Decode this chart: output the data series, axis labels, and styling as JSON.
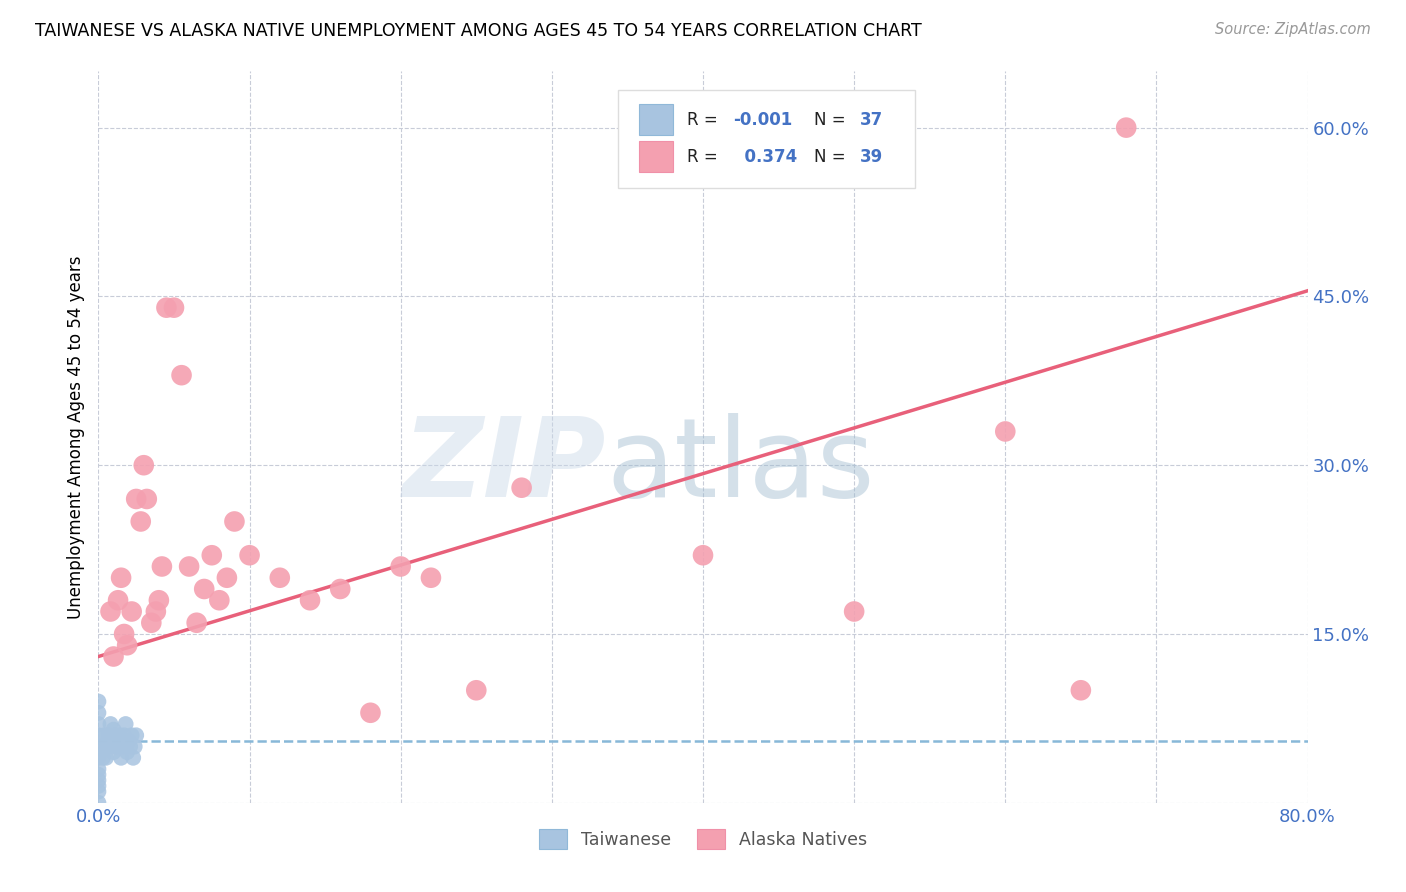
{
  "title": "TAIWANESE VS ALASKA NATIVE UNEMPLOYMENT AMONG AGES 45 TO 54 YEARS CORRELATION CHART",
  "source": "Source: ZipAtlas.com",
  "ylabel": "Unemployment Among Ages 45 to 54 years",
  "xlim": [
    0,
    0.8
  ],
  "ylim": [
    0,
    0.65
  ],
  "xticks": [
    0.0,
    0.1,
    0.2,
    0.3,
    0.4,
    0.5,
    0.6,
    0.7,
    0.8
  ],
  "xticklabels": [
    "0.0%",
    "",
    "",
    "",
    "",
    "",
    "",
    "",
    "80.0%"
  ],
  "right_yticks": [
    0.0,
    0.15,
    0.3,
    0.45,
    0.6
  ],
  "right_yticklabels": [
    "",
    "15.0%",
    "30.0%",
    "45.0%",
    "60.0%"
  ],
  "taiwanese_r": "-0.001",
  "taiwanese_n": "37",
  "alaska_r": "0.374",
  "alaska_n": "39",
  "taiwanese_color": "#a8c4e0",
  "alaska_color": "#f4a0b0",
  "taiwanese_line_color": "#88b8d8",
  "alaska_line_color": "#e8607a",
  "legend_taiwanese": "Taiwanese",
  "legend_alaska": "Alaska Natives",
  "tw_line_start_y": 0.055,
  "tw_line_end_y": 0.055,
  "ak_line_start_y": 0.13,
  "ak_line_end_y": 0.455,
  "taiwanese_x": [
    0.0,
    0.0,
    0.0,
    0.0,
    0.0,
    0.0,
    0.0,
    0.0,
    0.0,
    0.0,
    0.0,
    0.0,
    0.002,
    0.003,
    0.004,
    0.005,
    0.006,
    0.007,
    0.008,
    0.009,
    0.01,
    0.01,
    0.011,
    0.012,
    0.013,
    0.014,
    0.015,
    0.016,
    0.017,
    0.018,
    0.019,
    0.02,
    0.021,
    0.022,
    0.023,
    0.024,
    0.025
  ],
  "taiwanese_y": [
    0.02,
    0.03,
    0.04,
    0.05,
    0.06,
    0.07,
    0.08,
    0.09,
    0.01,
    0.0,
    0.015,
    0.025,
    0.05,
    0.04,
    0.06,
    0.04,
    0.05,
    0.06,
    0.07,
    0.055,
    0.045,
    0.065,
    0.05,
    0.06,
    0.05,
    0.06,
    0.04,
    0.05,
    0.06,
    0.07,
    0.045,
    0.055,
    0.05,
    0.06,
    0.04,
    0.05,
    0.06
  ],
  "alaska_x": [
    0.008,
    0.01,
    0.013,
    0.015,
    0.017,
    0.019,
    0.022,
    0.025,
    0.028,
    0.03,
    0.032,
    0.035,
    0.038,
    0.04,
    0.042,
    0.045,
    0.05,
    0.055,
    0.06,
    0.065,
    0.07,
    0.075,
    0.08,
    0.085,
    0.09,
    0.1,
    0.12,
    0.14,
    0.16,
    0.18,
    0.2,
    0.22,
    0.25,
    0.28,
    0.4,
    0.5,
    0.6,
    0.65,
    0.68
  ],
  "alaska_y": [
    0.17,
    0.13,
    0.18,
    0.2,
    0.15,
    0.14,
    0.17,
    0.27,
    0.25,
    0.3,
    0.27,
    0.16,
    0.17,
    0.18,
    0.21,
    0.44,
    0.44,
    0.38,
    0.21,
    0.16,
    0.19,
    0.22,
    0.18,
    0.2,
    0.25,
    0.22,
    0.2,
    0.18,
    0.19,
    0.08,
    0.21,
    0.2,
    0.1,
    0.28,
    0.22,
    0.17,
    0.33,
    0.1,
    0.6
  ]
}
